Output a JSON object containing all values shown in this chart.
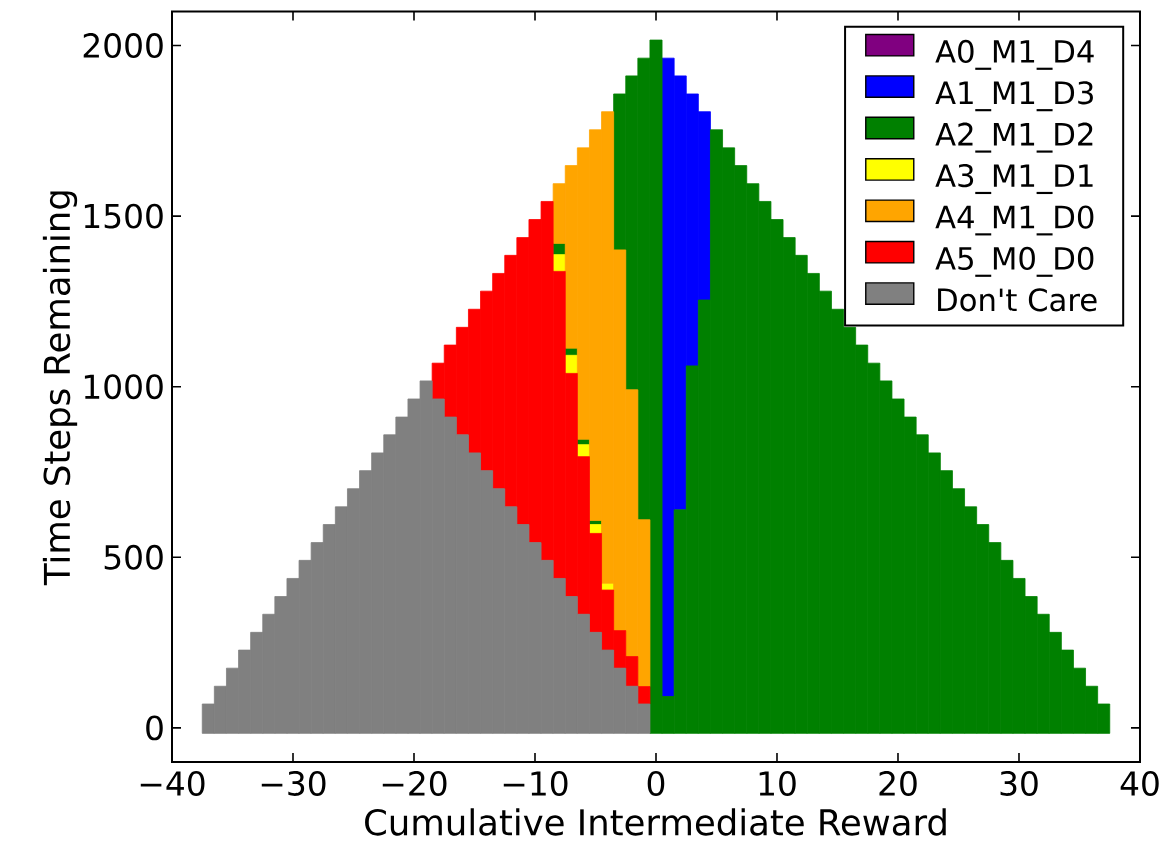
{
  "chart_data": {
    "type": "bar",
    "xlabel": "Cumulative Intermediate Reward",
    "ylabel": "Time Steps Remaining",
    "x": [
      -37,
      -36,
      -35,
      -34,
      -33,
      -32,
      -31,
      -30,
      -29,
      -28,
      -27,
      -26,
      -25,
      -24,
      -23,
      -22,
      -21,
      -20,
      -19,
      -18,
      -17,
      -16,
      -15,
      -14,
      -13,
      -12,
      -11,
      -10,
      -9,
      -8,
      -7,
      -6,
      -5,
      -4,
      -3,
      -2,
      -1,
      0,
      1,
      2,
      3,
      4,
      5,
      6,
      7,
      8,
      9,
      10,
      11,
      12,
      13,
      14,
      15,
      16,
      17,
      18,
      19,
      20,
      21,
      22,
      23,
      24,
      25,
      26,
      27,
      28,
      29,
      30,
      31,
      32,
      33,
      34,
      35,
      36,
      37
    ],
    "xlim": [
      -40,
      40
    ],
    "xticks": [
      {
        "value": -40,
        "label": "−40"
      },
      {
        "value": -30,
        "label": "−30"
      },
      {
        "value": -20,
        "label": "−20"
      },
      {
        "value": -10,
        "label": "−10"
      },
      0,
      10,
      20,
      30,
      40
    ],
    "ylim": [
      -100,
      2100
    ],
    "yticks": [
      0,
      500,
      1000,
      1500,
      2000
    ],
    "legend": "top right",
    "series": [
      {
        "name": "A0_M1_D4",
        "color": "#800080",
        "values": [
          null,
          null,
          null,
          null,
          null,
          null,
          null,
          null,
          null,
          null,
          null,
          null,
          null,
          null,
          null,
          null,
          null,
          null,
          null,
          null,
          null,
          null,
          null,
          null,
          null,
          null,
          null,
          null,
          null,
          null,
          null,
          null,
          null,
          null,
          null,
          null,
          null,
          null,
          null,
          null,
          null,
          null,
          null,
          null,
          null,
          null,
          null,
          null,
          null,
          null,
          null,
          null,
          null,
          null,
          null,
          null,
          null,
          null,
          null,
          null,
          null,
          null,
          null,
          null,
          null,
          null,
          null,
          null,
          null,
          null,
          null,
          null,
          null,
          null,
          null
        ]
      },
      {
        "name": "A1_M1_D3",
        "color": "#0000ff",
        "base": [
          null,
          null,
          null,
          null,
          null,
          null,
          null,
          null,
          null,
          null,
          null,
          null,
          null,
          null,
          null,
          null,
          null,
          null,
          null,
          null,
          null,
          null,
          null,
          null,
          null,
          null,
          null,
          null,
          null,
          null,
          null,
          null,
          null,
          null,
          null,
          null,
          null,
          null,
          92,
          639,
          1061,
          1254,
          null,
          null,
          null,
          null,
          null,
          null,
          null,
          null,
          null,
          null,
          null,
          null,
          null,
          null,
          null,
          null,
          null,
          null,
          null,
          null,
          null,
          null,
          null,
          null,
          null,
          null,
          null,
          null,
          null,
          null,
          null,
          null,
          null
        ],
        "values": [
          null,
          null,
          null,
          null,
          null,
          null,
          null,
          null,
          null,
          null,
          null,
          null,
          null,
          null,
          null,
          null,
          null,
          null,
          null,
          null,
          null,
          null,
          null,
          null,
          null,
          null,
          null,
          null,
          null,
          null,
          null,
          null,
          null,
          null,
          null,
          null,
          null,
          null,
          1871,
          1272,
          797,
          552,
          null,
          null,
          null,
          null,
          null,
          null,
          null,
          null,
          null,
          null,
          null,
          null,
          null,
          null,
          null,
          null,
          null,
          null,
          null,
          null,
          null,
          null,
          null,
          null,
          null,
          null,
          null,
          null,
          null,
          null,
          null,
          null,
          null
        ]
      },
      {
        "name": "A2_M1_D2",
        "color": "#008000",
        "base": [
          null,
          null,
          null,
          null,
          null,
          null,
          null,
          null,
          null,
          null,
          null,
          null,
          null,
          null,
          null,
          null,
          null,
          null,
          null,
          null,
          null,
          null,
          null,
          null,
          null,
          null,
          null,
          null,
          null,
          1387,
          1092,
          830,
          596,
          null,
          1401,
          991,
          610,
          -16,
          -16,
          -16,
          -16,
          -16,
          -16,
          -16,
          -16,
          -16,
          -16,
          -16,
          -16,
          -16,
          -16,
          -16,
          -16,
          -16,
          -16,
          -16,
          -16,
          -16,
          -16,
          -16,
          -16,
          -16,
          -16,
          -16,
          -16,
          -16,
          -16,
          -16,
          -16,
          -16,
          -16,
          -16,
          -16,
          -16,
          -16
        ],
        "values": [
          null,
          null,
          null,
          null,
          null,
          null,
          null,
          null,
          null,
          null,
          null,
          null,
          null,
          null,
          null,
          null,
          null,
          null,
          null,
          null,
          null,
          null,
          null,
          null,
          null,
          null,
          null,
          null,
          null,
          33,
          21,
          16,
          12,
          null,
          457,
          920,
          1353,
          2032,
          108,
          655,
          1077,
          1270,
          1769,
          1716,
          1664,
          1611,
          1559,
          1506,
          1453,
          1401,
          1348,
          1296,
          1243,
          1190,
          1138,
          1085,
          1033,
          980,
          927,
          875,
          822,
          770,
          717,
          664,
          612,
          559,
          507,
          454,
          401,
          349,
          296,
          244,
          191,
          138,
          86
        ]
      },
      {
        "name": "A3_M1_D1",
        "color": "#ffff00",
        "base": [
          null,
          null,
          null,
          null,
          null,
          null,
          null,
          null,
          null,
          null,
          null,
          null,
          null,
          null,
          null,
          null,
          null,
          null,
          null,
          null,
          null,
          null,
          null,
          null,
          null,
          null,
          null,
          null,
          null,
          1338,
          1039,
          795,
          570,
          404,
          null,
          null,
          null,
          null,
          null,
          null,
          null,
          null,
          null,
          null,
          null,
          null,
          null,
          null,
          null,
          null,
          null,
          null,
          null,
          null,
          null,
          null,
          null,
          null,
          null,
          null,
          null,
          null,
          null,
          null,
          null,
          null,
          null,
          null,
          null,
          null,
          null,
          null,
          null,
          null,
          null
        ],
        "values": [
          null,
          null,
          null,
          null,
          null,
          null,
          null,
          null,
          null,
          null,
          null,
          null,
          null,
          null,
          null,
          null,
          null,
          null,
          null,
          null,
          null,
          null,
          null,
          null,
          null,
          null,
          null,
          null,
          null,
          49,
          53,
          35,
          26,
          20,
          null,
          null,
          null,
          null,
          null,
          null,
          null,
          null,
          null,
          null,
          null,
          null,
          null,
          null,
          null,
          null,
          null,
          null,
          null,
          null,
          null,
          null,
          null,
          null,
          null,
          null,
          null,
          null,
          null,
          null,
          null,
          null,
          null,
          null,
          null,
          null,
          null,
          null,
          null,
          null,
          null
        ]
      },
      {
        "name": "A4_M1_D0",
        "color": "#ffa500",
        "base": [
          null,
          null,
          null,
          null,
          null,
          null,
          null,
          null,
          null,
          null,
          null,
          null,
          null,
          null,
          null,
          null,
          null,
          null,
          null,
          null,
          null,
          null,
          null,
          null,
          null,
          null,
          null,
          null,
          null,
          1420,
          1113,
          846,
          608,
          424,
          285,
          209,
          121,
          null,
          null,
          null,
          null,
          null,
          null,
          null,
          null,
          null,
          null,
          null,
          null,
          null,
          null,
          null,
          null,
          null,
          null,
          null,
          null,
          null,
          null,
          null,
          null,
          null,
          null,
          null,
          null,
          null,
          null,
          null,
          null,
          null,
          null,
          null,
          null,
          null,
          null
        ],
        "values": [
          null,
          null,
          null,
          null,
          null,
          null,
          null,
          null,
          null,
          null,
          null,
          null,
          null,
          null,
          null,
          null,
          null,
          null,
          null,
          null,
          null,
          null,
          null,
          null,
          null,
          null,
          null,
          null,
          null,
          175,
          535,
          854,
          1145,
          1382,
          1116,
          782,
          489,
          null,
          null,
          null,
          null,
          null,
          null,
          null,
          null,
          null,
          null,
          null,
          null,
          null,
          null,
          null,
          null,
          null,
          null,
          null,
          null,
          null,
          null,
          null,
          null,
          null,
          null,
          null,
          null,
          null,
          null,
          null,
          null,
          null,
          null,
          null,
          null,
          null,
          null
        ]
      },
      {
        "name": "A5_M0_D0",
        "color": "#ff0000",
        "base": [
          null,
          null,
          null,
          null,
          null,
          null,
          null,
          null,
          null,
          null,
          null,
          null,
          null,
          null,
          null,
          null,
          null,
          null,
          null,
          964,
          911,
          859,
          806,
          754,
          701,
          648,
          596,
          543,
          491,
          438,
          385,
          333,
          280,
          228,
          175,
          122,
          70,
          null,
          null,
          null,
          null,
          null,
          null,
          null,
          null,
          null,
          null,
          null,
          null,
          null,
          null,
          null,
          null,
          null,
          null,
          null,
          null,
          null,
          null,
          null,
          null,
          null,
          null,
          null,
          null,
          null,
          null,
          null,
          null,
          null,
          null,
          null,
          null,
          null,
          null
        ],
        "values": [
          null,
          null,
          null,
          null,
          null,
          null,
          null,
          null,
          null,
          null,
          null,
          null,
          null,
          null,
          null,
          null,
          null,
          null,
          null,
          105,
          211,
          315,
          421,
          526,
          631,
          737,
          841,
          947,
          1052,
          900,
          654,
          462,
          290,
          176,
          110,
          87,
          51,
          null,
          null,
          null,
          null,
          null,
          null,
          null,
          null,
          null,
          null,
          null,
          null,
          null,
          null,
          null,
          null,
          null,
          null,
          null,
          null,
          null,
          null,
          null,
          null,
          null,
          null,
          null,
          null,
          null,
          null,
          null,
          null,
          null,
          null,
          null,
          null,
          null,
          null
        ]
      },
      {
        "name": "Don't Care",
        "color": "#808080",
        "base": [
          -16,
          -16,
          -16,
          -16,
          -16,
          -16,
          -16,
          -16,
          -16,
          -16,
          -16,
          -16,
          -16,
          -16,
          -16,
          -16,
          -16,
          -16,
          -16,
          -16,
          -16,
          -16,
          -16,
          -16,
          -16,
          -16,
          -16,
          -16,
          -16,
          -16,
          -16,
          -16,
          -16,
          -16,
          -16,
          -16,
          -16,
          null,
          null,
          null,
          null,
          null,
          null,
          null,
          null,
          null,
          null,
          null,
          null,
          null,
          null,
          null,
          null,
          null,
          null,
          null,
          null,
          null,
          null,
          null,
          null,
          null,
          null,
          null,
          null,
          null,
          null,
          null,
          null,
          null,
          null,
          null,
          null,
          null,
          null
        ],
        "values": [
          86,
          138,
          191,
          244,
          296,
          349,
          401,
          454,
          507,
          559,
          612,
          664,
          717,
          770,
          822,
          875,
          927,
          980,
          1033,
          980,
          927,
          875,
          822,
          770,
          717,
          664,
          612,
          559,
          507,
          454,
          401,
          349,
          296,
          244,
          191,
          138,
          86,
          null,
          null,
          null,
          null,
          null,
          null,
          null,
          null,
          null,
          null,
          null,
          null,
          null,
          null,
          null,
          null,
          null,
          null,
          null,
          null,
          null,
          null,
          null,
          null,
          null,
          null,
          null,
          null,
          null,
          null,
          null,
          null,
          null,
          null,
          null,
          null,
          null,
          null
        ]
      }
    ]
  }
}
